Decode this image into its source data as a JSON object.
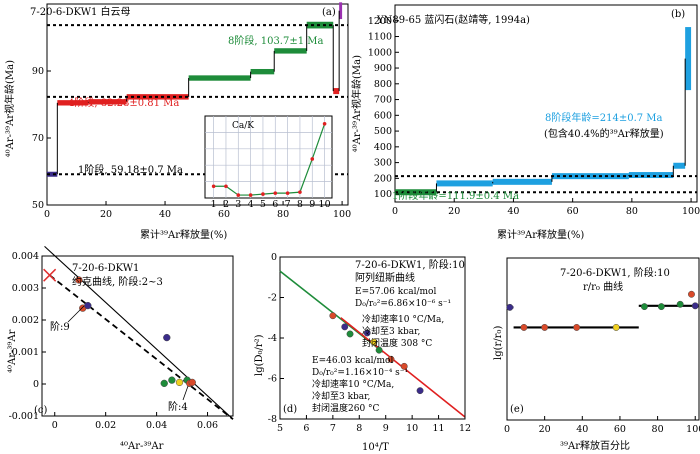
{
  "chart_data": [
    {
      "panel": "(a)",
      "type": "step",
      "sample": "7-20-6-DKW1  白云母",
      "xlabel": "累计³⁹Ar释放量(%)",
      "ylabel": "⁴⁰Ar-³⁹Ar视年龄(Ma)",
      "xlim": [
        0,
        102
      ],
      "ylim": [
        50,
        110
      ],
      "xticks": [
        0,
        20,
        40,
        60,
        80,
        100
      ],
      "yticks": [
        50,
        70,
        90
      ],
      "steps": [
        {
          "x0": 0,
          "x1": 3.5,
          "y": 59.18,
          "err": 0.7,
          "color": "#3b2c8a"
        },
        {
          "x0": 3.5,
          "x1": 14,
          "y": 80.5,
          "err": 0.8,
          "color": "#e02020"
        },
        {
          "x0": 14,
          "x1": 27,
          "y": 80.8,
          "err": 0.8,
          "color": "#e02020"
        },
        {
          "x0": 27,
          "x1": 48,
          "y": 82.28,
          "err": 0.81,
          "color": "#e02020"
        },
        {
          "x0": 48,
          "x1": 69,
          "y": 87.9,
          "err": 0.8,
          "color": "#1e8c3a"
        },
        {
          "x0": 69,
          "x1": 77,
          "y": 89.8,
          "err": 0.8,
          "color": "#1e8c3a"
        },
        {
          "x0": 77,
          "x1": 88,
          "y": 96.0,
          "err": 0.8,
          "color": "#1e8c3a"
        },
        {
          "x0": 88,
          "x1": 97,
          "y": 103.7,
          "err": 1.0,
          "color": "#1e8c3a"
        },
        {
          "x0": 97,
          "x1": 99,
          "y": 84.0,
          "err": 0.9,
          "color": "#e02020"
        },
        {
          "x0": 99,
          "x1": 100,
          "y": 108.0,
          "err": 2.5,
          "color": "#9b30b0"
        }
      ],
      "reference_lines": [
        59.18,
        82.28,
        103.7
      ],
      "annotations": [
        "8阶段, 103.7±1 Ma",
        "4阶段, 82.28±0.81 Ma",
        "1阶段, 59.18±0.7 Ma"
      ],
      "inset": {
        "title": "Ca/K",
        "x": [
          1,
          2,
          3,
          4,
          5,
          6,
          7,
          8,
          9,
          10
        ],
        "y": [
          0.6,
          0.6,
          0.15,
          0.15,
          0.2,
          0.25,
          0.25,
          0.3,
          2.0,
          3.8
        ],
        "ylim": [
          0,
          4.2
        ],
        "color": "#1e8c3a",
        "marker_color": "#e02020"
      }
    },
    {
      "panel": "(b)",
      "type": "step",
      "sample": "YN89-65  蓝闪石(赵靖等, 1994a)",
      "xlabel": "累计³⁹Ar释放量(%)",
      "ylabel": "⁴⁰Ar-³⁹Ar视年龄(Ma)",
      "xlim": [
        0,
        102
      ],
      "ylim": [
        50,
        1300
      ],
      "xticks": [
        0,
        20,
        40,
        60,
        80,
        100
      ],
      "yticks": [
        100,
        200,
        300,
        400,
        500,
        600,
        700,
        800,
        900,
        1000,
        1100,
        1200
      ],
      "steps": [
        {
          "x0": 0,
          "x1": 14,
          "y": 111.9,
          "err": 8,
          "color": "#1e8c3a"
        },
        {
          "x0": 14,
          "x1": 33,
          "y": 168,
          "err": 10,
          "color": "#1ea0e0"
        },
        {
          "x0": 33,
          "x1": 53,
          "y": 178,
          "err": 10,
          "color": "#1ea0e0"
        },
        {
          "x0": 53,
          "x1": 79,
          "y": 214,
          "err": 9,
          "color": "#1ea0e0"
        },
        {
          "x0": 79,
          "x1": 94,
          "y": 221,
          "err": 9,
          "color": "#1ea0e0"
        },
        {
          "x0": 94,
          "x1": 98,
          "y": 280,
          "err": 12,
          "color": "#1ea0e0"
        },
        {
          "x0": 98,
          "x1": 100,
          "y": 960,
          "err": 200,
          "color": "#1ea0e0"
        }
      ],
      "reference_lines": [
        111.9,
        214
      ],
      "annotations": [
        "8阶段年龄=214±0.7 Ma",
        "(包含40.4%的³⁹Ar释放量)",
        "1阶段年龄=111.9±0.4 Ma"
      ]
    },
    {
      "panel": "(c)",
      "type": "scatter",
      "title": "7-20-6-DKW1",
      "subtitle": "约克曲线, 阶段:2~3",
      "xlabel": "⁴⁰Ar-³⁹Ar",
      "ylabel": "⁴⁰Ar-³⁹Ar",
      "xlim": [
        -0.005,
        0.07
      ],
      "ylim": [
        -0.001,
        0.004
      ],
      "xticks": [
        0,
        0.02,
        0.04,
        0.06
      ],
      "yticks": [
        -0.001,
        0,
        0.001,
        0.002,
        0.003,
        0.004
      ],
      "points": [
        {
          "x": 0.0095,
          "y": 0.00325,
          "color": "#d94a2a"
        },
        {
          "x": 0.011,
          "y": 0.00237,
          "color": "#d94a2a"
        },
        {
          "x": 0.013,
          "y": 0.00245,
          "color": "#3b2c8a"
        },
        {
          "x": 0.044,
          "y": 0.00145,
          "color": "#3b2c8a"
        },
        {
          "x": 0.043,
          "y": 2e-05,
          "color": "#1e8c3a"
        },
        {
          "x": 0.046,
          "y": 0.00012,
          "color": "#1e8c3a"
        },
        {
          "x": 0.049,
          "y": 5e-05,
          "color": "#f0d020"
        },
        {
          "x": 0.052,
          "y": 0.00012,
          "color": "#1e8c3a"
        },
        {
          "x": 0.053,
          "y": 2e-05,
          "color": "#d94a2a"
        },
        {
          "x": 0.054,
          "y": 5e-05,
          "color": "#d94a2a"
        }
      ],
      "cross": {
        "x": -0.002,
        "y": 0.0034,
        "color": "#e03030"
      },
      "lines": [
        {
          "style": "solid",
          "x0": -0.004,
          "y0": 0.0043,
          "x1": 0.07,
          "y1": -0.0011
        },
        {
          "style": "dashed",
          "x0": -0.002,
          "y0": 0.0034,
          "x1": 0.07,
          "y1": -0.0011
        }
      ],
      "annotations": [
        "阶:9",
        "阶:4"
      ]
    },
    {
      "panel": "(d)",
      "type": "scatter",
      "title": "7-20-6-DKW1, 阶段: 10",
      "subtitle": "阿列纽斯曲线",
      "xlabel": "10⁴/T",
      "ylabel": "lg(D₀/r²)",
      "xlim": [
        5,
        12
      ],
      "ylim": [
        -8,
        0
      ],
      "xticks": [
        5,
        6,
        7,
        8,
        9,
        10,
        11,
        12
      ],
      "yticks": [
        -8,
        -6,
        -4,
        -2,
        0
      ],
      "points": [
        {
          "x": 7.0,
          "y": -2.9,
          "color": "#d94a2a"
        },
        {
          "x": 7.45,
          "y": -3.45,
          "color": "#3b2c8a"
        },
        {
          "x": 7.65,
          "y": -3.8,
          "color": "#1e8c3a"
        },
        {
          "x": 8.3,
          "y": -3.75,
          "color": "#3b2c8a"
        },
        {
          "x": 8.55,
          "y": -4.2,
          "color": "#f0d020"
        },
        {
          "x": 8.75,
          "y": -4.6,
          "color": "#1e8c3a"
        },
        {
          "x": 9.2,
          "y": -5.05,
          "color": "#d94a2a"
        },
        {
          "x": 9.7,
          "y": -5.4,
          "color": "#d94a2a"
        },
        {
          "x": 10.3,
          "y": -6.6,
          "color": "#3b2c8a"
        }
      ],
      "lines": [
        {
          "color": "#1e8c3a",
          "x0": 5,
          "y0": -0.7,
          "x1": 8.9,
          "y1": -4.7
        },
        {
          "color": "#e02020",
          "x0": 7.3,
          "y0": -3.0,
          "x1": 12,
          "y1": -7.9
        }
      ],
      "annotations": [
        "E=57.06 kcal/mol",
        "D₀/r₀²=6.86×10⁻⁶ s⁻¹",
        "冷却速率10 °C/Ma,",
        "冷却至3 kbar,",
        "封闭温度 308 °C",
        "E=46.03 kcal/mol",
        "D₀/r₀²=1.16×10⁻⁴ s⁻¹",
        "冷却速率10 °C/Ma,",
        "冷却至3 kbar,",
        "封闭温度260 °C"
      ]
    },
    {
      "panel": "(e)",
      "type": "step",
      "title": "7-20-6-DKW1, 阶段:10",
      "subtitle": "r/r₀ 曲线",
      "xlabel": "³⁹Ar释放百分比",
      "ylabel": "lg(r/r₀)",
      "xlim": [
        0,
        102
      ],
      "ylim": [
        -1.2,
        0.9
      ],
      "xticks": [
        0,
        20,
        40,
        60,
        80,
        100
      ],
      "steps": [
        {
          "x0": 0,
          "x1": 3.5,
          "y": 0.26,
          "color": "#3b2c8a"
        },
        {
          "x0": 3.5,
          "x1": 70,
          "y": 0.0,
          "color": "#000"
        },
        {
          "x0": 70,
          "x1": 100,
          "y": 0.28,
          "color": "#000"
        }
      ],
      "points": [
        {
          "x": 1.5,
          "y": 0.26,
          "color": "#3b2c8a"
        },
        {
          "x": 9,
          "y": 0.0,
          "color": "#d94a2a"
        },
        {
          "x": 20,
          "y": 0.0,
          "color": "#d94a2a"
        },
        {
          "x": 37,
          "y": 0.0,
          "color": "#d94a2a"
        },
        {
          "x": 58,
          "y": 0.0,
          "color": "#f0d020"
        },
        {
          "x": 73,
          "y": 0.27,
          "color": "#1e8c3a"
        },
        {
          "x": 82,
          "y": 0.27,
          "color": "#1e8c3a"
        },
        {
          "x": 92,
          "y": 0.3,
          "color": "#1e8c3a"
        },
        {
          "x": 98,
          "y": 0.43,
          "color": "#d94a2a"
        },
        {
          "x": 100,
          "y": 0.28,
          "color": "#3b2c8a"
        }
      ]
    }
  ],
  "panels": {
    "a": {
      "label": "(a)",
      "sample": "7-20-6-DKW1  白云母",
      "ann8": "8阶段, 103.7±1 Ma",
      "ann4": "4阶段, 82.28±0.81 Ma",
      "ann1": "1阶段, 59.18±0.7 Ma",
      "inset_title": "Ca/K",
      "xlabel": "累计³⁹Ar释放量(%)",
      "ylabel": "⁴⁰Ar-³⁹Ar视年龄(Ma)"
    },
    "b": {
      "label": "(b)",
      "sample": "YN89-65  蓝闪石(赵靖等, 1994a)",
      "ann8": "8阶段年龄=214±0.7 Ma",
      "ann8b": "(包含40.4%的³⁹Ar释放量)",
      "ann1": "1阶段年龄=111.9±0.4 Ma",
      "xlabel": "累计³⁹Ar释放量(%)",
      "ylabel": "⁴⁰Ar-³⁹Ar视年龄(Ma)"
    },
    "c": {
      "label": "(c)",
      "title": "7-20-6-DKW1",
      "subtitle": "约克曲线, 阶段:2~3",
      "ann9": "阶:9",
      "ann4": "阶:4",
      "xlabel": "⁴⁰Ar-³⁹Ar",
      "ylabel": "⁴⁰Ar-³⁹Ar"
    },
    "d": {
      "label": "(d)",
      "title": "7-20-6-DKW1, 阶段:10",
      "subtitle": "阿列纽斯曲线",
      "e1": "E=57.06 kcal/mol",
      "d1": "D₀/r₀²=6.86×10⁻⁶ s⁻¹",
      "c1": "冷却速率10 °C/Ma,",
      "p1": "冷却至3 kbar,",
      "t1": "封闭温度 308 °C",
      "e2": "E=46.03 kcal/mol",
      "d2": "D₀/r₀²=1.16×10⁻⁴ s⁻¹",
      "c2": "冷却速率10 °C/Ma,",
      "p2": "冷却至3 kbar,",
      "t2": "封闭温度260 °C",
      "xlabel": "10⁴/T",
      "ylabel": "lg(D₀/r²)"
    },
    "e": {
      "label": "(e)",
      "title": "7-20-6-DKW1, 阶段:10",
      "subtitle": "r/r₀ 曲线",
      "xlabel": "³⁹Ar释放百分比",
      "ylabel": "lg(r/r₀)"
    }
  }
}
